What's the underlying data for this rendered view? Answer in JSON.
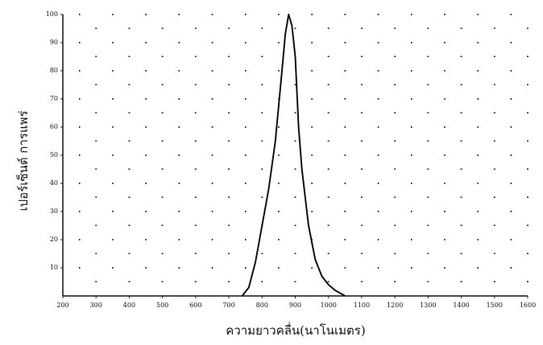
{
  "chart_data": {
    "type": "line",
    "x_label": "ความยาวคลื่น(นาโนเมตร)",
    "y_label": "เปอร์เซ็นต์ การแพร่",
    "x": [
      740,
      760,
      780,
      800,
      820,
      840,
      860,
      870,
      880,
      890,
      900,
      910,
      920,
      940,
      960,
      980,
      1000,
      1020,
      1050
    ],
    "series": [
      {
        "color": "#111111",
        "values": [
          0,
          3,
          12,
          25,
          38,
          55,
          80,
          93,
          100,
          96,
          85,
          60,
          45,
          25,
          13,
          7,
          4,
          2,
          0
        ]
      }
    ],
    "xlim": [
      200,
      1600
    ],
    "xticks": [
      200,
      300,
      400,
      500,
      600,
      700,
      800,
      900,
      1000,
      1100,
      1200,
      1300,
      1400,
      1500,
      1600
    ],
    "ylim": [
      0,
      100
    ],
    "yticks": [
      10,
      20,
      30,
      40,
      50,
      60,
      70,
      80,
      90,
      100
    ],
    "grid": true
  }
}
